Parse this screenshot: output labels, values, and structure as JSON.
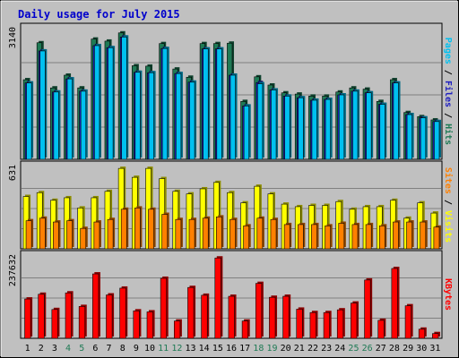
{
  "chart_data": [
    {
      "type": "bar",
      "panel": "hits-files-pages",
      "title": "Daily usage for July 2015",
      "categories": [
        "1",
        "2",
        "3",
        "4",
        "5",
        "6",
        "7",
        "8",
        "9",
        "10",
        "11",
        "12",
        "13",
        "14",
        "15",
        "16",
        "17",
        "18",
        "19",
        "20",
        "21",
        "22",
        "23",
        "24",
        "25",
        "26",
        "27",
        "28",
        "29",
        "30",
        "31"
      ],
      "weekend_categories": [
        "4",
        "5",
        "11",
        "12",
        "18",
        "19",
        "25",
        "26"
      ],
      "ymax_label": "3140",
      "ylim": [
        0,
        3140
      ],
      "grid": true,
      "legend_placement": "right-vertical",
      "series": [
        {
          "name": "Hits",
          "color": "#1f7a55",
          "values": [
            1940,
            2840,
            1740,
            2050,
            1740,
            2930,
            2880,
            3080,
            2280,
            2270,
            2820,
            2200,
            2000,
            2820,
            2820,
            2830,
            1410,
            2010,
            1810,
            1620,
            1590,
            1540,
            1540,
            1640,
            1740,
            1710,
            1410,
            1940,
            1140,
            1040,
            960
          ]
        },
        {
          "name": "Files",
          "color": "#2020c0",
          "values": [
            1860,
            2640,
            1640,
            1960,
            1660,
            2770,
            2720,
            2980,
            2120,
            2110,
            2700,
            2090,
            1880,
            2690,
            2690,
            2050,
            1300,
            1870,
            1690,
            1540,
            1500,
            1440,
            1460,
            1570,
            1660,
            1620,
            1340,
            1860,
            1090,
            1010,
            920
          ]
        },
        {
          "name": "Pages",
          "color": "#00c0f0",
          "values": [
            1860,
            2640,
            1640,
            1960,
            1660,
            2770,
            2720,
            2980,
            2120,
            2110,
            2700,
            2090,
            1880,
            2690,
            2690,
            2050,
            1300,
            1840,
            1690,
            1540,
            1500,
            1440,
            1460,
            1570,
            1660,
            1620,
            1340,
            1860,
            1090,
            1010,
            920
          ]
        }
      ]
    },
    {
      "type": "bar",
      "panel": "visits-sites",
      "categories": [
        "1",
        "2",
        "3",
        "4",
        "5",
        "6",
        "7",
        "8",
        "9",
        "10",
        "11",
        "12",
        "13",
        "14",
        "15",
        "16",
        "17",
        "18",
        "19",
        "20",
        "21",
        "22",
        "23",
        "24",
        "25",
        "26",
        "27",
        "28",
        "29",
        "30",
        "31"
      ],
      "ymax_label": "631",
      "ylim": [
        0,
        631
      ],
      "grid": true,
      "legend_placement": "right-vertical",
      "series": [
        {
          "name": "Visits",
          "color": "#ffff00",
          "values": [
            410,
            440,
            380,
            400,
            320,
            400,
            450,
            630,
            560,
            630,
            550,
            450,
            430,
            470,
            520,
            440,
            360,
            490,
            430,
            350,
            330,
            340,
            340,
            370,
            310,
            330,
            330,
            380,
            240,
            360,
            280
          ]
        },
        {
          "name": "Sites",
          "color": "#ff8000",
          "values": [
            220,
            240,
            210,
            220,
            160,
            210,
            230,
            310,
            320,
            310,
            270,
            230,
            230,
            240,
            250,
            230,
            180,
            240,
            230,
            190,
            190,
            190,
            180,
            200,
            190,
            190,
            180,
            210,
            210,
            210,
            170
          ]
        }
      ]
    },
    {
      "type": "bar",
      "panel": "kbytes",
      "categories": [
        "1",
        "2",
        "3",
        "4",
        "5",
        "6",
        "7",
        "8",
        "9",
        "10",
        "11",
        "12",
        "13",
        "14",
        "15",
        "16",
        "17",
        "18",
        "19",
        "20",
        "21",
        "22",
        "23",
        "24",
        "25",
        "26",
        "27",
        "28",
        "29",
        "30",
        "31"
      ],
      "ymax_label": "237632",
      "ylim": [
        0,
        237632
      ],
      "grid": true,
      "legend_placement": "right-vertical",
      "series": [
        {
          "name": "KBytes",
          "color": "#ff0000",
          "values": [
            116000,
            130000,
            85000,
            134000,
            94000,
            190000,
            128000,
            148000,
            81000,
            78000,
            177000,
            51000,
            150000,
            127000,
            237000,
            124000,
            51000,
            162000,
            121000,
            124000,
            86000,
            76000,
            76000,
            84000,
            104000,
            172000,
            53000,
            206000,
            96000,
            27000,
            14000
          ]
        }
      ]
    }
  ]
}
